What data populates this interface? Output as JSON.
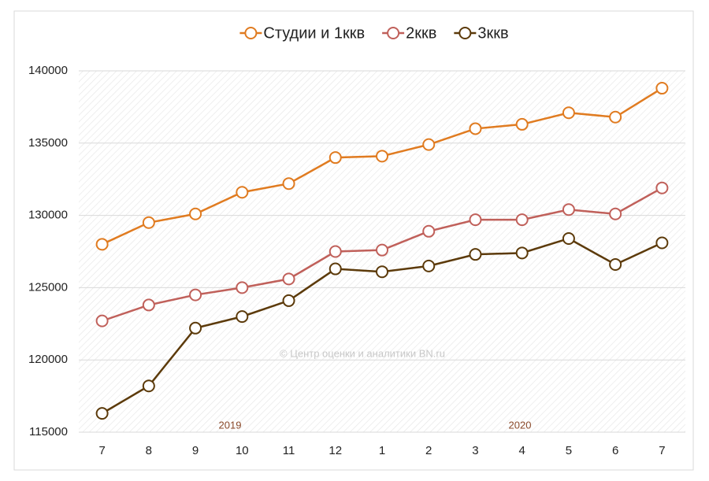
{
  "chart_data": {
    "type": "line",
    "categories": [
      "7",
      "8",
      "9",
      "10",
      "11",
      "12",
      "1",
      "2",
      "3",
      "4",
      "5",
      "6",
      "7"
    ],
    "series": [
      {
        "name": "Студии и 1ккв",
        "color": "#e07b20",
        "values": [
          128000,
          129500,
          130100,
          131600,
          132200,
          134000,
          134100,
          134900,
          136000,
          136300,
          137100,
          136800,
          138800
        ]
      },
      {
        "name": "2ккв",
        "color": "#c0605a",
        "values": [
          122700,
          123800,
          124500,
          125000,
          125600,
          127500,
          127600,
          128900,
          129700,
          129700,
          130400,
          130100,
          131900
        ]
      },
      {
        "name": "3ккв",
        "color": "#5c3a0a",
        "values": [
          116300,
          118200,
          122200,
          123000,
          124100,
          126300,
          126100,
          126500,
          127300,
          127400,
          128400,
          126600,
          128100
        ]
      }
    ],
    "ylim": [
      115000,
      140000
    ],
    "yticks": [
      115000,
      120000,
      125000,
      130000,
      135000,
      140000
    ],
    "grid": true,
    "legend": "top",
    "annotations": [
      "2019",
      "2020",
      "© Центр оценки и аналитики BN.ru"
    ]
  }
}
